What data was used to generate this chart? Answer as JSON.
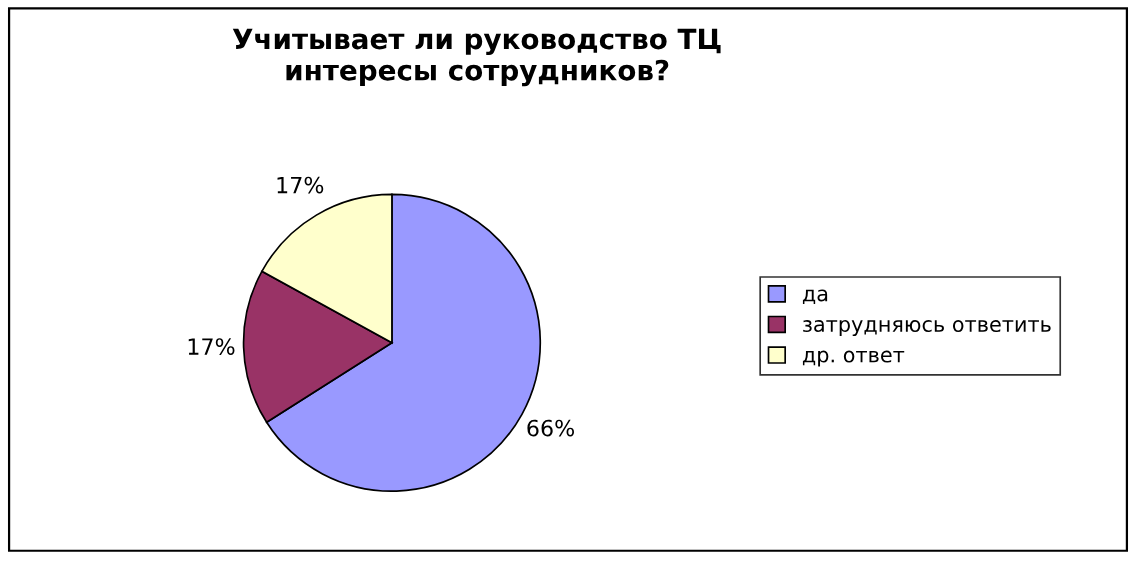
{
  "chart_data": {
    "type": "pie",
    "title": "Учитывает ли руководство ТЦ\nинтересы сотрудников?",
    "categories": [
      "да",
      "затрудняюсь ответить",
      "др. ответ"
    ],
    "values": [
      66,
      17,
      17
    ],
    "colors": [
      "#9999ff",
      "#993366",
      "#ffffcc"
    ],
    "value_labels": [
      "66%",
      "17%",
      "17%"
    ],
    "legend": "right"
  }
}
